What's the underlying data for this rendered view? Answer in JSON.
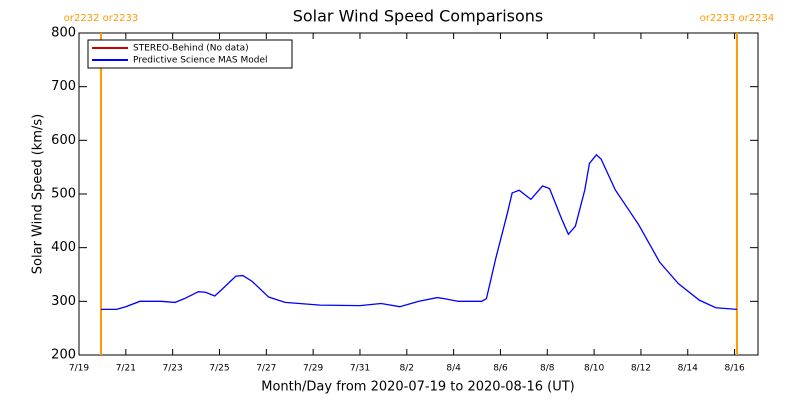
{
  "chart_data": {
    "type": "line",
    "title": "Solar Wind Speed Comparisons",
    "xlabel": "Month/Day from 2020-07-19 to 2020-08-16 (UT)",
    "ylabel": "Solar Wind Speed (km/s)",
    "x": [
      0.94,
      1.6,
      2.0,
      2.6,
      3.5,
      4.1,
      4.5,
      5.1,
      5.4,
      5.8,
      6.1,
      6.7,
      7.0,
      7.4,
      8.1,
      8.8,
      10.3,
      12.0,
      12.9,
      13.7,
      14.5,
      15.3,
      15.6,
      16.2,
      17.2,
      17.4,
      17.8,
      18.3,
      18.5,
      18.8,
      19.3,
      19.8,
      20.1,
      20.6,
      20.9,
      21.2,
      21.6,
      21.8,
      22.1,
      22.3,
      22.9,
      23.9,
      24.8,
      25.6,
      26.5,
      27.2,
      28.1
    ],
    "series": [
      {
        "name": "STEREO-Behind (No data)",
        "color": "#cc0000",
        "values": [
          null,
          null,
          null,
          null,
          null,
          null,
          null,
          null,
          null,
          null,
          null,
          null,
          null,
          null,
          null,
          null,
          null,
          null,
          null,
          null,
          null,
          null,
          null,
          null,
          null,
          null,
          null,
          null,
          null,
          null,
          null,
          null,
          null,
          null,
          null,
          null,
          null,
          null,
          null,
          null,
          null,
          null,
          null,
          null,
          null,
          null,
          null
        ]
      },
      {
        "name": "Predictive Science MAS Model",
        "color": "#0000ff",
        "values": [
          285,
          285,
          290,
          300,
          300,
          298,
          305,
          318,
          317,
          310,
          322,
          347,
          348,
          337,
          308,
          298,
          293,
          292,
          296,
          290,
          300,
          307,
          305,
          300,
          300,
          305,
          380,
          465,
          502,
          507,
          490,
          515,
          510,
          455,
          425,
          440,
          507,
          557,
          573,
          565,
          508,
          443,
          373,
          333,
          302,
          288,
          285
        ]
      }
    ],
    "xlim": [
      0,
      29
    ],
    "xticks": [
      {
        "value": 0,
        "label": "7/19"
      },
      {
        "value": 2,
        "label": "7/21"
      },
      {
        "value": 4,
        "label": "7/23"
      },
      {
        "value": 6,
        "label": "7/25"
      },
      {
        "value": 8,
        "label": "7/27"
      },
      {
        "value": 10,
        "label": "7/29"
      },
      {
        "value": 12,
        "label": "7/31"
      },
      {
        "value": 14,
        "label": "8/2"
      },
      {
        "value": 16,
        "label": "8/4"
      },
      {
        "value": 18,
        "label": "8/6"
      },
      {
        "value": 20,
        "label": "8/8"
      },
      {
        "value": 22,
        "label": "8/10"
      },
      {
        "value": 24,
        "label": "8/12"
      },
      {
        "value": 26,
        "label": "8/14"
      },
      {
        "value": 28,
        "label": "8/16"
      }
    ],
    "ylim": [
      200,
      800
    ],
    "yticks": [
      200,
      300,
      400,
      500,
      600,
      700,
      800
    ],
    "markers": [
      {
        "x": 0.94,
        "label": "or2232 or2233",
        "color": "#ff9900"
      },
      {
        "x": 28.1,
        "label": "or2233 or2234",
        "color": "#ff9900"
      }
    ],
    "legend": "upper left"
  }
}
